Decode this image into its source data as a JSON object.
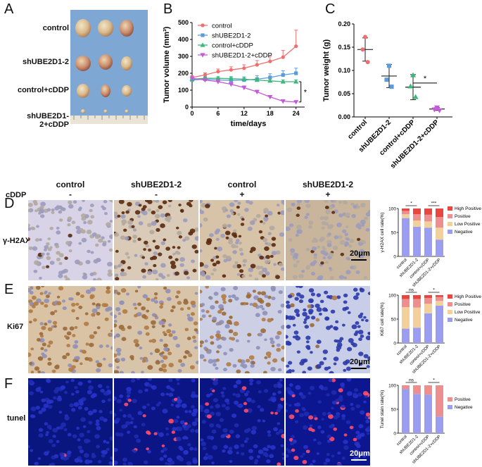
{
  "panels": {
    "a": "A",
    "b": "B",
    "c": "C",
    "d": "D",
    "e": "E",
    "f": "F"
  },
  "photo": {
    "rows": [
      "control",
      "shUBE2D1-2",
      "control+cDDP",
      "shUBE2D1-2+cDDP"
    ]
  },
  "ihc": {
    "columns": [
      "control",
      "shUBE2D1-2",
      "control",
      "shUBE2D1-2"
    ],
    "cddp_label": "cDDP",
    "cddp_signs": [
      "-",
      "-",
      "+",
      "+"
    ],
    "rows": [
      "γ-H2AX",
      "Ki67",
      "tunel"
    ],
    "scalebar": "20μm"
  },
  "chart_data": [
    {
      "type": "line",
      "xlabel": "time/days",
      "ylabel": "Tumor volume (mm³)",
      "xlim": [
        0,
        26
      ],
      "ylim": [
        0,
        500
      ],
      "xticks": [
        0,
        6,
        12,
        18,
        24
      ],
      "yticks": [
        0,
        100,
        200,
        300,
        400,
        500
      ],
      "legend_position": "top-left",
      "significance": "*",
      "x": [
        0,
        3,
        6,
        9,
        12,
        15,
        18,
        21,
        24
      ],
      "series": [
        {
          "name": "control",
          "color": "#ef6f6f",
          "marker": "circle",
          "values": [
            175,
            190,
            210,
            220,
            230,
            250,
            270,
            295,
            360
          ],
          "err": [
            10,
            12,
            15,
            18,
            20,
            25,
            30,
            40,
            95
          ]
        },
        {
          "name": "shUBE2D1-2",
          "color": "#5b9bdc",
          "marker": "square",
          "values": [
            160,
            165,
            160,
            158,
            160,
            165,
            175,
            190,
            200
          ],
          "err": [
            10,
            12,
            14,
            16,
            18,
            20,
            22,
            25,
            30
          ]
        },
        {
          "name": "control+cDDP",
          "color": "#3bb87a",
          "marker": "triangle",
          "values": [
            165,
            170,
            170,
            168,
            165,
            160,
            155,
            150,
            150
          ],
          "err": [
            8,
            10,
            10,
            12,
            12,
            12,
            10,
            10,
            10
          ]
        },
        {
          "name": "shUBE2D1-2+cDDP",
          "color": "#c45ad9",
          "marker": "triangle-down",
          "values": [
            170,
            160,
            150,
            135,
            115,
            90,
            60,
            35,
            30
          ],
          "err": [
            8,
            8,
            10,
            10,
            10,
            10,
            8,
            8,
            8
          ]
        }
      ]
    },
    {
      "type": "scatter",
      "ylabel": "Tumor weight (g)",
      "ylim": [
        0,
        0.2
      ],
      "yticks": [
        "0.00",
        "0.05",
        "0.10",
        "0.15",
        "0.20"
      ],
      "significance": "*",
      "categories": [
        "control",
        "shUBE2D1-2",
        "control+cDDP",
        "shUBE2D1-2+cDDP"
      ],
      "groups": [
        {
          "color": "#ef6f6f",
          "marker": "circle",
          "mean": 0.145,
          "sd": 0.025,
          "points": [
            0.172,
            0.145,
            0.118
          ]
        },
        {
          "color": "#5b9bdc",
          "marker": "square",
          "mean": 0.088,
          "sd": 0.025,
          "points": [
            0.11,
            0.08,
            0.065
          ]
        },
        {
          "color": "#3bb87a",
          "marker": "triangle",
          "mean": 0.064,
          "sd": 0.027,
          "points": [
            0.09,
            0.066,
            0.043
          ]
        },
        {
          "color": "#c45ad9",
          "marker": "triangle-down",
          "mean": 0.017,
          "sd": 0.003,
          "points": [
            0.02,
            0.016,
            0.014
          ]
        }
      ]
    },
    {
      "type": "bar",
      "stacked": true,
      "ylabel": "γ-H2AX cell rate(%)",
      "ylim": [
        0,
        100
      ],
      "yticks": [
        0,
        50,
        100
      ],
      "categories": [
        "control",
        "shUBE2D1-2",
        "control+cDDP",
        "shUBE2D1-2+cDDP"
      ],
      "legend": [
        "High Positive",
        "Positive",
        "Low Positive",
        "Negative"
      ],
      "significance": [
        "*",
        "***"
      ],
      "series": [
        {
          "name": "Negative",
          "color": "#9b9df0",
          "values": [
            80,
            62,
            60,
            35
          ]
        },
        {
          "name": "Low Positive",
          "color": "#f3cf9a",
          "values": [
            8,
            13,
            13,
            25
          ]
        },
        {
          "name": "Positive",
          "color": "#ee8e8e",
          "values": [
            7,
            13,
            14,
            22
          ]
        },
        {
          "name": "High Positive",
          "color": "#e8463e",
          "values": [
            5,
            12,
            13,
            18
          ]
        }
      ]
    },
    {
      "type": "bar",
      "stacked": true,
      "ylabel": "Ki67 cell rate(%)",
      "ylim": [
        0,
        100
      ],
      "yticks": [
        0,
        50,
        100
      ],
      "categories": [
        "control",
        "shUBE2D1-2",
        "control+cDDP",
        "shUBE2D1-2+cDDP"
      ],
      "legend": [
        "High Positive",
        "Positive",
        "Low Positive",
        "Negative"
      ],
      "significance": [
        "ns",
        "*"
      ],
      "series": [
        {
          "name": "Negative",
          "color": "#9b9df0",
          "values": [
            30,
            32,
            62,
            78
          ]
        },
        {
          "name": "Low Positive",
          "color": "#f3cf9a",
          "values": [
            45,
            42,
            20,
            10
          ]
        },
        {
          "name": "Positive",
          "color": "#ee8e8e",
          "values": [
            17,
            18,
            12,
            8
          ]
        },
        {
          "name": "High Positive",
          "color": "#e8463e",
          "values": [
            8,
            8,
            6,
            4
          ]
        }
      ]
    },
    {
      "type": "bar",
      "stacked": true,
      "ylabel": "Tunel stain rate(%)",
      "ylim": [
        0,
        100
      ],
      "yticks": [
        0,
        50,
        100
      ],
      "categories": [
        "control",
        "shUBE2D1-2",
        "control+cDDP",
        "shUBE2D1-2+cDDP"
      ],
      "legend": [
        "Positive",
        "Negative"
      ],
      "significance": [
        "ns",
        "*"
      ],
      "series": [
        {
          "name": "Negative",
          "color": "#9b9df0",
          "values": [
            92,
            82,
            80,
            35
          ]
        },
        {
          "name": "Positive",
          "color": "#ee8e8e",
          "values": [
            8,
            18,
            20,
            65
          ]
        }
      ]
    }
  ]
}
